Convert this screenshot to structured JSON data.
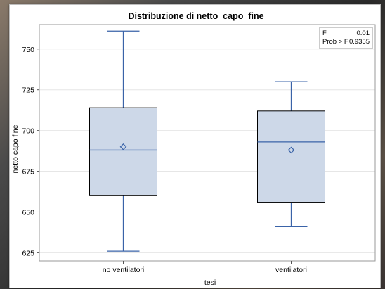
{
  "chart_data": {
    "type": "box",
    "title": "Distribuzione di netto_capo_fine",
    "xlabel": "tesi",
    "ylabel": "netto capo fine",
    "ylim": [
      620,
      765
    ],
    "yticks": [
      625,
      650,
      675,
      700,
      725,
      750
    ],
    "categories": [
      "no ventilatori",
      "ventilatori"
    ],
    "boxes": [
      {
        "category": "no ventilatori",
        "min": 626,
        "q1": 660,
        "median": 688,
        "q3": 714,
        "max": 761,
        "mean": 690
      },
      {
        "category": "ventilatori",
        "min": 641,
        "q1": 656,
        "median": 693,
        "q3": 712,
        "max": 730,
        "mean": 688
      }
    ],
    "inset": {
      "rows": [
        {
          "label": "F",
          "value": "0.01"
        },
        {
          "label": "Prob > F",
          "value": "0.9355"
        }
      ],
      "placement": "top-right"
    },
    "colors": {
      "box_fill": "#cdd8e8",
      "stroke": "#3a63a8",
      "outline": "#000000"
    }
  }
}
